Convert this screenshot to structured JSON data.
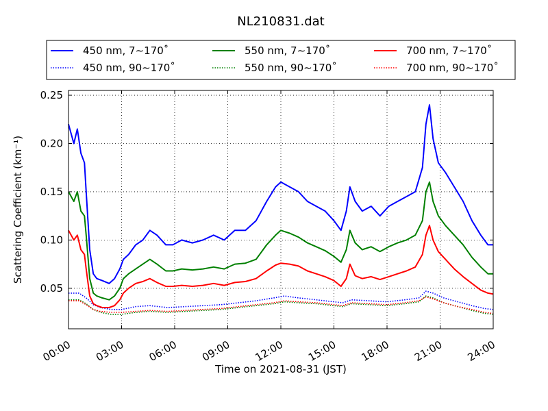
{
  "chart_data": {
    "type": "line",
    "title": "NL210831.dat",
    "xlabel": "Time on 2021-08-31 (JST)",
    "ylabel": "Scattering Coefficient (km⁻¹)",
    "xlim": [
      0,
      24
    ],
    "ylim": [
      0.008,
      0.255
    ],
    "x_ticks": [
      0,
      3,
      6,
      9,
      12,
      15,
      18,
      21,
      24
    ],
    "x_tick_labels": [
      "00:00",
      "03:00",
      "06:00",
      "09:00",
      "12:00",
      "15:00",
      "18:00",
      "21:00",
      "24:00"
    ],
    "y_ticks": [
      0.05,
      0.1,
      0.15,
      0.2,
      0.25
    ],
    "y_tick_labels": [
      "0.05",
      "0.10",
      "0.15",
      "0.20",
      "0.25"
    ],
    "grid": true,
    "legend_position": "top",
    "series": [
      {
        "name": "450 nm, 7∼170˚",
        "color": "#0000ff",
        "style": "solid",
        "x": [
          0,
          0.3,
          0.5,
          0.7,
          0.9,
          1.0,
          1.2,
          1.4,
          1.6,
          1.9,
          2.3,
          2.6,
          2.9,
          3.1,
          3.4,
          3.8,
          4.2,
          4.6,
          5.0,
          5.5,
          5.9,
          6.4,
          7.0,
          7.6,
          8.2,
          8.8,
          9.4,
          10.0,
          10.6,
          11.2,
          11.7,
          12.0,
          12.5,
          13.0,
          13.5,
          14.0,
          14.5,
          15.0,
          15.4,
          15.7,
          15.9,
          16.2,
          16.6,
          17.1,
          17.6,
          18.1,
          18.6,
          19.1,
          19.6,
          20.0,
          20.2,
          20.4,
          20.6,
          20.9,
          21.3,
          21.8,
          22.3,
          22.8,
          23.3,
          23.7,
          24.0
        ],
        "y": [
          0.22,
          0.2,
          0.215,
          0.19,
          0.18,
          0.15,
          0.09,
          0.065,
          0.06,
          0.058,
          0.055,
          0.06,
          0.07,
          0.08,
          0.085,
          0.095,
          0.1,
          0.11,
          0.105,
          0.095,
          0.095,
          0.1,
          0.097,
          0.1,
          0.105,
          0.1,
          0.11,
          0.11,
          0.12,
          0.14,
          0.155,
          0.16,
          0.155,
          0.15,
          0.14,
          0.135,
          0.13,
          0.12,
          0.11,
          0.13,
          0.155,
          0.14,
          0.13,
          0.135,
          0.125,
          0.135,
          0.14,
          0.145,
          0.15,
          0.175,
          0.22,
          0.24,
          0.205,
          0.18,
          0.17,
          0.155,
          0.14,
          0.12,
          0.105,
          0.095,
          0.095
        ]
      },
      {
        "name": "550 nm, 7∼170˚",
        "color": "#008000",
        "style": "solid",
        "x": [
          0,
          0.3,
          0.5,
          0.7,
          0.9,
          1.0,
          1.2,
          1.4,
          1.6,
          1.9,
          2.3,
          2.6,
          2.9,
          3.1,
          3.4,
          3.8,
          4.2,
          4.6,
          5.0,
          5.5,
          5.9,
          6.4,
          7.0,
          7.6,
          8.2,
          8.8,
          9.4,
          10.0,
          10.6,
          11.2,
          11.7,
          12.0,
          12.5,
          13.0,
          13.5,
          14.0,
          14.5,
          15.0,
          15.4,
          15.7,
          15.9,
          16.2,
          16.6,
          17.1,
          17.6,
          18.1,
          18.6,
          19.1,
          19.6,
          20.0,
          20.2,
          20.4,
          20.6,
          20.9,
          21.3,
          21.8,
          22.3,
          22.8,
          23.3,
          23.7,
          24.0
        ],
        "y": [
          0.15,
          0.14,
          0.15,
          0.13,
          0.125,
          0.105,
          0.06,
          0.045,
          0.042,
          0.04,
          0.038,
          0.042,
          0.05,
          0.06,
          0.065,
          0.07,
          0.075,
          0.08,
          0.075,
          0.068,
          0.068,
          0.07,
          0.069,
          0.07,
          0.072,
          0.07,
          0.075,
          0.076,
          0.08,
          0.095,
          0.105,
          0.11,
          0.107,
          0.103,
          0.097,
          0.093,
          0.089,
          0.083,
          0.077,
          0.09,
          0.11,
          0.097,
          0.09,
          0.093,
          0.088,
          0.093,
          0.097,
          0.1,
          0.105,
          0.12,
          0.15,
          0.16,
          0.14,
          0.125,
          0.115,
          0.105,
          0.095,
          0.082,
          0.072,
          0.065,
          0.065
        ]
      },
      {
        "name": "700 nm, 7∼170˚",
        "color": "#ff0000",
        "style": "solid",
        "x": [
          0,
          0.3,
          0.5,
          0.7,
          0.9,
          1.0,
          1.2,
          1.4,
          1.6,
          1.9,
          2.3,
          2.6,
          2.9,
          3.1,
          3.4,
          3.8,
          4.2,
          4.6,
          5.0,
          5.5,
          5.9,
          6.4,
          7.0,
          7.6,
          8.2,
          8.8,
          9.4,
          10.0,
          10.6,
          11.2,
          11.7,
          12.0,
          12.5,
          13.0,
          13.5,
          14.0,
          14.5,
          15.0,
          15.4,
          15.7,
          15.9,
          16.2,
          16.6,
          17.1,
          17.6,
          18.1,
          18.6,
          19.1,
          19.6,
          20.0,
          20.2,
          20.4,
          20.6,
          20.9,
          21.3,
          21.8,
          22.3,
          22.8,
          23.3,
          23.7,
          24.0
        ],
        "y": [
          0.11,
          0.1,
          0.105,
          0.09,
          0.085,
          0.07,
          0.042,
          0.034,
          0.032,
          0.03,
          0.03,
          0.032,
          0.038,
          0.045,
          0.05,
          0.055,
          0.057,
          0.06,
          0.056,
          0.052,
          0.052,
          0.053,
          0.052,
          0.053,
          0.055,
          0.053,
          0.056,
          0.057,
          0.06,
          0.068,
          0.074,
          0.076,
          0.075,
          0.073,
          0.068,
          0.065,
          0.062,
          0.058,
          0.052,
          0.06,
          0.075,
          0.063,
          0.06,
          0.062,
          0.059,
          0.062,
          0.065,
          0.068,
          0.072,
          0.085,
          0.105,
          0.115,
          0.1,
          0.088,
          0.08,
          0.07,
          0.062,
          0.055,
          0.048,
          0.045,
          0.044
        ]
      },
      {
        "name": "450 nm, 90∼170˚",
        "color": "#0000ff",
        "style": "dotted",
        "x": [
          0,
          0.6,
          1.0,
          1.4,
          1.8,
          2.4,
          3.0,
          3.8,
          4.6,
          5.6,
          6.6,
          7.6,
          8.6,
          9.6,
          10.6,
          11.6,
          12.2,
          13.0,
          14.0,
          15.0,
          15.5,
          16.0,
          17.0,
          18.0,
          19.0,
          19.8,
          20.2,
          20.6,
          21.2,
          22.0,
          22.8,
          23.5,
          24.0
        ],
        "y": [
          0.045,
          0.045,
          0.04,
          0.033,
          0.03,
          0.028,
          0.028,
          0.031,
          0.032,
          0.03,
          0.031,
          0.032,
          0.033,
          0.035,
          0.037,
          0.04,
          0.042,
          0.04,
          0.038,
          0.036,
          0.035,
          0.038,
          0.037,
          0.036,
          0.038,
          0.04,
          0.047,
          0.045,
          0.04,
          0.036,
          0.032,
          0.029,
          0.028
        ]
      },
      {
        "name": "550 nm, 90∼170˚",
        "color": "#008000",
        "style": "dotted",
        "x": [
          0,
          0.6,
          1.0,
          1.4,
          1.8,
          2.4,
          3.0,
          3.8,
          4.6,
          5.6,
          6.6,
          7.6,
          8.6,
          9.6,
          10.6,
          11.6,
          12.2,
          13.0,
          14.0,
          15.0,
          15.5,
          16.0,
          17.0,
          18.0,
          19.0,
          19.8,
          20.2,
          20.6,
          21.2,
          22.0,
          22.8,
          23.5,
          24.0
        ],
        "y": [
          0.038,
          0.038,
          0.034,
          0.028,
          0.025,
          0.023,
          0.023,
          0.025,
          0.026,
          0.025,
          0.026,
          0.027,
          0.028,
          0.03,
          0.032,
          0.034,
          0.036,
          0.035,
          0.034,
          0.032,
          0.031,
          0.034,
          0.033,
          0.032,
          0.034,
          0.036,
          0.042,
          0.04,
          0.035,
          0.031,
          0.027,
          0.024,
          0.023
        ]
      },
      {
        "name": "700 nm, 90∼170˚",
        "color": "#ff0000",
        "style": "dotted",
        "x": [
          0,
          0.6,
          1.0,
          1.4,
          1.8,
          2.4,
          3.0,
          3.8,
          4.6,
          5.6,
          6.6,
          7.6,
          8.6,
          9.6,
          10.6,
          11.6,
          12.2,
          13.0,
          14.0,
          15.0,
          15.5,
          16.0,
          17.0,
          18.0,
          19.0,
          19.8,
          20.2,
          20.6,
          21.2,
          22.0,
          22.8,
          23.5,
          24.0
        ],
        "y": [
          0.037,
          0.037,
          0.033,
          0.028,
          0.026,
          0.025,
          0.025,
          0.026,
          0.027,
          0.026,
          0.027,
          0.028,
          0.029,
          0.031,
          0.033,
          0.035,
          0.037,
          0.036,
          0.035,
          0.033,
          0.032,
          0.035,
          0.034,
          0.033,
          0.035,
          0.037,
          0.041,
          0.039,
          0.035,
          0.031,
          0.028,
          0.025,
          0.024
        ]
      }
    ]
  }
}
